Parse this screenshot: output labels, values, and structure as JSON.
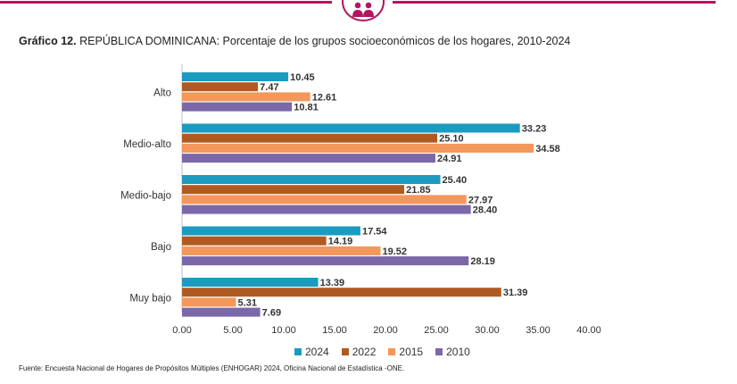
{
  "header": {
    "title_prefix": "Gráfico 12.",
    "title_text": " REPÚBLICA DOMINICANA: Porcentaje de los grupos socioeconómicos de los hogares, 2010-2024"
  },
  "logo": {
    "icon": "people-group-icon",
    "color": "#b0175f"
  },
  "source": "Fuente: Encuesta Nacional de Hogares de Propósitos Múltiples (ENHOGAR) 2024, Oficina Nacional de Estadística -ONE.",
  "colors": {
    "2024": "#1a9bbf",
    "2022": "#b05a22",
    "2015": "#f4975a",
    "2010": "#7b68a8",
    "accent": "#b0175f"
  },
  "chart_data": {
    "type": "bar",
    "orientation": "horizontal",
    "categories": [
      "Alto",
      "Medio-alto",
      "Medio-bajo",
      "Bajo",
      "Muy bajo"
    ],
    "series": [
      {
        "name": "2024",
        "color": "#1a9bbf",
        "values": [
          10.45,
          33.23,
          25.4,
          17.54,
          13.39
        ]
      },
      {
        "name": "2022",
        "color": "#b05a22",
        "values": [
          7.47,
          25.1,
          21.85,
          14.19,
          31.39
        ]
      },
      {
        "name": "2015",
        "color": "#f4975a",
        "values": [
          12.61,
          34.58,
          27.97,
          19.52,
          5.31
        ]
      },
      {
        "name": "2010",
        "color": "#7b68a8",
        "values": [
          10.81,
          24.91,
          28.4,
          28.19,
          7.69
        ]
      }
    ],
    "x_ticks": [
      "0.00",
      "5.00",
      "10.00",
      "15.00",
      "20.00",
      "25.00",
      "30.00",
      "35.00",
      "40.00"
    ],
    "xlim": [
      0,
      40
    ],
    "grid": false,
    "legend_position": "bottom-center"
  }
}
